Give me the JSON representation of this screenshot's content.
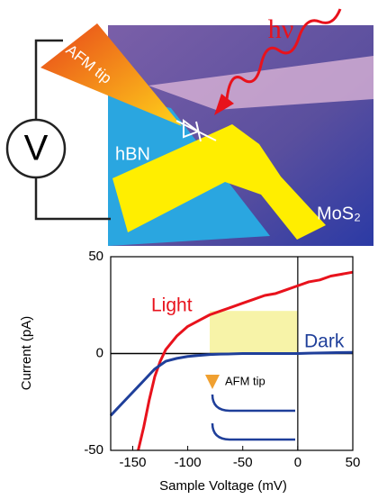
{
  "diagram": {
    "photon": "hν",
    "tip": "AFM tip",
    "meter": "V",
    "substrate": "hBN",
    "material": "MoS₂"
  },
  "chart_data": {
    "type": "line",
    "xlabel": "Sample Voltage (mV)",
    "ylabel": "Current (pA)",
    "x": [
      -170,
      -160,
      -150,
      -145,
      -140,
      -135,
      -130,
      -125,
      -120,
      -110,
      -100,
      -90,
      -80,
      -70,
      -60,
      -50,
      -40,
      -30,
      -20,
      -10,
      0,
      10,
      20,
      30,
      40,
      50
    ],
    "series": [
      {
        "name": "Light",
        "color": "#e8121c",
        "values": [
          null,
          null,
          null,
          -50,
          -38,
          -24,
          -12,
          -4,
          2,
          9,
          14,
          17,
          20,
          22,
          24,
          26,
          28,
          30,
          31,
          33,
          35,
          37,
          38,
          40,
          41,
          42
        ]
      },
      {
        "name": "Dark",
        "color": "#1f3f9a",
        "values": [
          -32,
          -26,
          -20,
          -17,
          -14,
          -11,
          -8,
          -6,
          -4,
          -2.5,
          -1.5,
          -1,
          -0.5,
          -0.3,
          -0.2,
          0,
          0,
          0,
          0,
          0,
          0,
          0.2,
          0.3,
          0.4,
          0.5,
          0.6
        ]
      }
    ],
    "highlight": {
      "x": [
        -80,
        0
      ],
      "y": [
        0,
        22
      ]
    },
    "inset_label": "AFM tip",
    "xlim": [
      -170,
      50
    ],
    "ylim": [
      -50,
      50
    ],
    "xticks": [
      -150,
      -100,
      -50,
      0,
      50
    ],
    "yticks": [
      -50,
      0,
      50
    ]
  }
}
